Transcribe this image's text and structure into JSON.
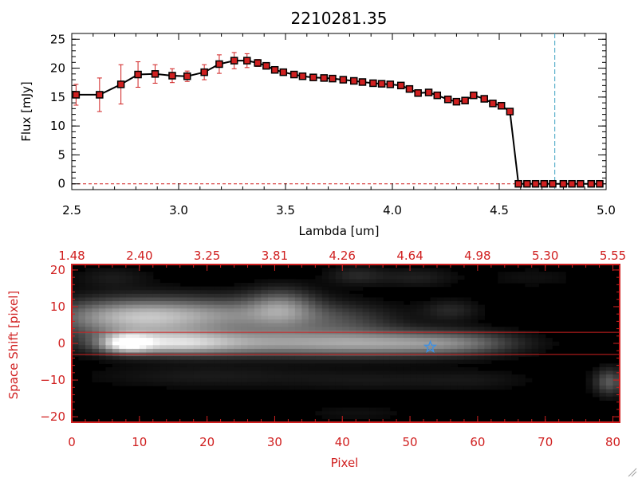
{
  "chart_data": [
    {
      "type": "line",
      "title": "2210281.35",
      "xlabel": "Lambda [um]",
      "ylabel": "Flux [mJy]",
      "xlim": [
        2.5,
        5.0
      ],
      "ylim": [
        -1,
        26
      ],
      "x_ticks": [
        2.5,
        3.0,
        3.5,
        4.0,
        4.5,
        5.0
      ],
      "x_tick_labels": [
        "2.5",
        "3.0",
        "3.5",
        "4.0",
        "4.5",
        "5.0"
      ],
      "y_ticks": [
        0,
        5,
        10,
        15,
        20,
        25
      ],
      "y_tick_labels": [
        "0",
        "5",
        "10",
        "15",
        "20",
        "25"
      ],
      "vertical_marker_x": 4.76,
      "zero_line": true,
      "series": [
        {
          "name": "Flux",
          "x": [
            2.52,
            2.63,
            2.73,
            2.81,
            2.89,
            2.97,
            3.04,
            3.12,
            3.19,
            3.26,
            3.32,
            3.37,
            3.41,
            3.45,
            3.49,
            3.54,
            3.58,
            3.63,
            3.68,
            3.72,
            3.77,
            3.82,
            3.86,
            3.91,
            3.95,
            3.99,
            4.04,
            4.08,
            4.12,
            4.17,
            4.21,
            4.26,
            4.3,
            4.34,
            4.38,
            4.43,
            4.47,
            4.51,
            4.55,
            4.59,
            4.63,
            4.67,
            4.71,
            4.75,
            4.8,
            4.84,
            4.88,
            4.93,
            4.97
          ],
          "y": [
            15.4,
            15.4,
            17.2,
            18.9,
            19.0,
            18.7,
            18.6,
            19.3,
            20.7,
            21.3,
            21.3,
            20.9,
            20.4,
            19.7,
            19.3,
            18.9,
            18.6,
            18.4,
            18.3,
            18.2,
            18.0,
            17.8,
            17.6,
            17.4,
            17.3,
            17.2,
            17.0,
            16.4,
            15.7,
            15.8,
            15.3,
            14.6,
            14.2,
            14.4,
            15.3,
            14.7,
            13.9,
            13.5,
            12.5,
            0,
            0,
            0,
            0,
            0,
            0,
            0,
            0,
            0,
            0
          ],
          "yerr": [
            1.8,
            2.9,
            3.4,
            2.2,
            1.6,
            1.2,
            0.9,
            1.3,
            1.6,
            1.4,
            1.2,
            0.6,
            0.4,
            0.4,
            0.3,
            0.3,
            0.3,
            0.3,
            0.3,
            0.3,
            0.3,
            0.3,
            0.3,
            0.3,
            0.3,
            0.3,
            0.3,
            0.3,
            0.3,
            0.3,
            0.3,
            0.3,
            0.3,
            0.3,
            0.3,
            0.3,
            0.3,
            0.3,
            0.3,
            0,
            0,
            0,
            0,
            0,
            0,
            0,
            0,
            0,
            0
          ],
          "line_color": "#000000",
          "marker_color": "#d02020",
          "errorbar_color": "#d02020"
        }
      ]
    },
    {
      "type": "heatmap",
      "xlabel": "Pixel",
      "ylabel": "Space Shift [pixel]",
      "xlim": [
        0,
        81
      ],
      "ylim": [
        -21.5,
        21.5
      ],
      "x_ticks": [
        0,
        10,
        20,
        30,
        40,
        50,
        60,
        70,
        80
      ],
      "x_tick_labels": [
        "0",
        "10",
        "20",
        "30",
        "40",
        "50",
        "60",
        "70",
        "80"
      ],
      "top_ticks": [
        0,
        10,
        20,
        30,
        40,
        50,
        60,
        70,
        80
      ],
      "top_tick_labels": [
        "1.48",
        "2.40",
        "3.25",
        "3.81",
        "4.26",
        "4.64",
        "4.98",
        "5.30",
        "5.55"
      ],
      "y_ticks": [
        -20,
        -10,
        0,
        10,
        20
      ],
      "y_tick_labels": [
        "−20",
        "−10",
        "0",
        "10",
        "20"
      ],
      "aperture_y": [
        -3,
        3
      ],
      "star_marker": {
        "x": 53,
        "y": -1
      },
      "blobs": [
        {
          "x": 8,
          "y": 0,
          "sx": 2.5,
          "sy": 1.8,
          "v": 0.6
        },
        {
          "x": 14,
          "y": 0,
          "sx": 7,
          "sy": 2.2,
          "v": 0.55
        },
        {
          "x": 30,
          "y": 0,
          "sx": 13,
          "sy": 2.5,
          "v": 0.5
        },
        {
          "x": 48,
          "y": 0,
          "sx": 9,
          "sy": 2.5,
          "v": 0.38
        },
        {
          "x": 58,
          "y": 0,
          "sx": 6,
          "sy": 2.2,
          "v": 0.25
        },
        {
          "x": 8,
          "y": 7,
          "sx": 8,
          "sy": 3.5,
          "v": 0.55
        },
        {
          "x": 22,
          "y": 7.5,
          "sx": 11,
          "sy": 3.5,
          "v": 0.45
        },
        {
          "x": 31,
          "y": 10,
          "sx": 3.5,
          "sy": 3.5,
          "v": 0.35
        },
        {
          "x": 40,
          "y": 6,
          "sx": 6,
          "sy": 3,
          "v": 0.18
        },
        {
          "x": 42,
          "y": 18.5,
          "sx": 3,
          "sy": 1.8,
          "v": 0.15
        },
        {
          "x": 51,
          "y": 18,
          "sx": 4,
          "sy": 1.8,
          "v": 0.12
        },
        {
          "x": 6,
          "y": 18,
          "sx": 4,
          "sy": 2,
          "v": 0.1
        },
        {
          "x": 56,
          "y": 9,
          "sx": 3,
          "sy": 2,
          "v": 0.15
        },
        {
          "x": 79.5,
          "y": -10.5,
          "sx": 1.6,
          "sy": 2.5,
          "v": 0.35
        },
        {
          "x": 20,
          "y": -9,
          "sx": 12,
          "sy": 2.2,
          "v": 0.1
        },
        {
          "x": 45,
          "y": -10,
          "sx": 9,
          "sy": 2,
          "v": 0.08
        },
        {
          "x": 60,
          "y": -10,
          "sx": 6,
          "sy": 2,
          "v": 0.07
        },
        {
          "x": 42,
          "y": -19,
          "sx": 6,
          "sy": 1.5,
          "v": 0.06
        },
        {
          "x": 68,
          "y": 18,
          "sx": 5,
          "sy": 2,
          "v": 0.06
        }
      ],
      "colormap": "grayscale",
      "accent_color": "#d02020",
      "star_color": "#4090e0"
    }
  ]
}
